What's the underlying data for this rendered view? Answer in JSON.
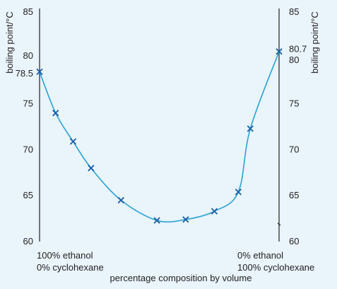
{
  "chart_data": {
    "type": "line",
    "title": "",
    "xlabel": "percentage composition by volume",
    "ylabel_left": "boiling point/°C",
    "ylabel_right": "boiling point/°C",
    "x_start_label": [
      "100% ethanol",
      "0% cyclohexane"
    ],
    "x_end_label": [
      "0% ethanol",
      "100% cyclohexane"
    ],
    "xlim": [
      0,
      100
    ],
    "ylim": [
      60,
      85
    ],
    "left_ticks": [
      "85",
      "80",
      "78.5",
      "75",
      "70",
      "65",
      "60"
    ],
    "left_tick_values": [
      85,
      80,
      78.5,
      75,
      70,
      65,
      60
    ],
    "right_ticks": [
      "85",
      "80.7",
      "80",
      "75",
      "70",
      "65",
      "60"
    ],
    "right_tick_values": [
      85,
      80.7,
      80,
      75,
      70,
      65,
      60
    ],
    "grid": false,
    "series": [
      {
        "values_x": [
          0,
          6.7,
          14,
          21.5,
          34,
          49,
          61,
          73,
          83,
          88,
          100
        ],
        "values_y": [
          78.5,
          74.0,
          70.9,
          68.0,
          64.5,
          62.3,
          62.4,
          63.3,
          65.4,
          72.3,
          80.7
        ]
      }
    ],
    "colors": {
      "line": "#29a3d6",
      "marker": "#1a5fa8",
      "background": "#e9f4fb",
      "axis": "#231f20"
    }
  }
}
